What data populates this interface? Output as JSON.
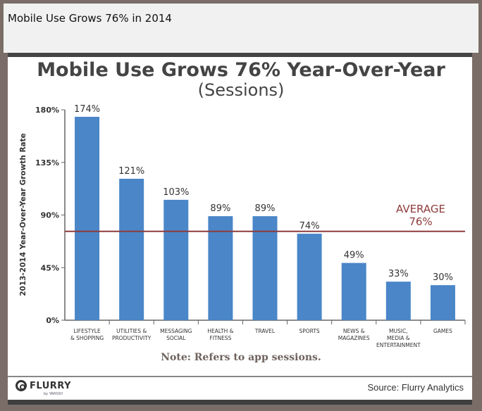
{
  "page_title": "Mobile Use Grows 76% in 2014",
  "source": "Source: Flurry Analytics",
  "logo": {
    "name": "FLURRY",
    "sub": "by YAHOO!"
  },
  "chart_data": {
    "type": "bar",
    "title": "Mobile Use Grows 76% Year-Over-Year",
    "subtitle": "(Sessions)",
    "ylabel": "2013-2014 Year-Over-Year Growth Rate",
    "xlabel": "",
    "ylim": [
      0,
      180
    ],
    "yticks": [
      0,
      45,
      90,
      135,
      180
    ],
    "ytick_labels": [
      "0%",
      "45%",
      "90%",
      "135%",
      "180%"
    ],
    "categories": [
      [
        "LIFESTYLE",
        "& SHOPPING"
      ],
      [
        "UTILITIES &",
        "PRODUCTIVITY"
      ],
      [
        "MESSAGING",
        "SOCIAL"
      ],
      [
        "HEALTH &",
        "FITNESS"
      ],
      [
        "TRAVEL"
      ],
      [
        "SPORTS"
      ],
      [
        "NEWS &",
        "MAGAZINES"
      ],
      [
        "MUSIC,",
        "MEDIA &",
        "ENTERTAINMENT"
      ],
      [
        "GAMES"
      ]
    ],
    "values": [
      174,
      121,
      103,
      89,
      89,
      74,
      49,
      33,
      30
    ],
    "data_labels": [
      "174%",
      "121%",
      "103%",
      "89%",
      "89%",
      "74%",
      "49%",
      "33%",
      "30%"
    ],
    "average": {
      "value": 76,
      "label": [
        "AVERAGE",
        "76%"
      ]
    },
    "note": "Note: Refers to app sessions.",
    "colors": {
      "bar": "#4a86c8",
      "average": "#8e3b3b",
      "axis": "#666"
    },
    "grid": false
  }
}
